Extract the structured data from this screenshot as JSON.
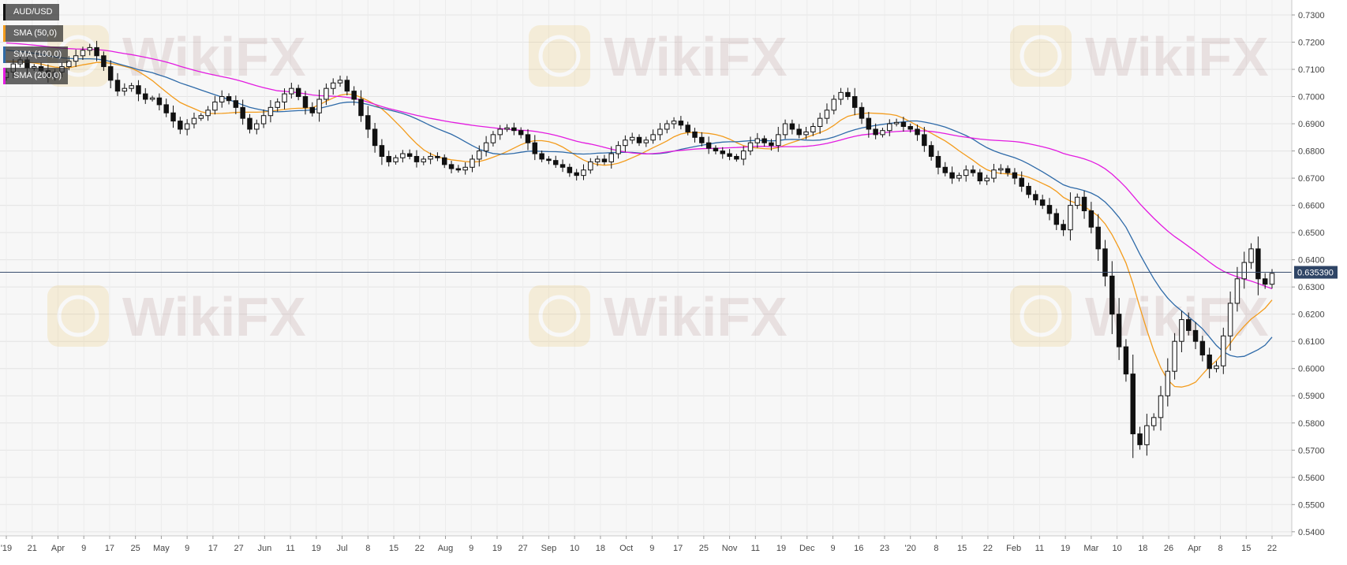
{
  "chart_data": {
    "type": "candlestick",
    "symbol": "AUD/USD",
    "indicators": [
      {
        "name": "SMA (50,0)",
        "color": "#f39c1d"
      },
      {
        "name": "SMA (100,0)",
        "color": "#2e6aa8"
      },
      {
        "name": "SMA (200,0)",
        "color": "#e31be0"
      }
    ],
    "price_axis": {
      "ticks": [
        "0.7300",
        "0.7200",
        "0.7100",
        "0.7000",
        "0.6900",
        "0.6800",
        "0.6700",
        "0.6600",
        "0.6500",
        "0.6400",
        "0.6300",
        "0.6200",
        "0.6100",
        "0.6000",
        "0.5900",
        "0.5800",
        "0.5700",
        "0.5600",
        "0.5500",
        "0.5400"
      ],
      "ylim": [
        0.5385,
        0.7355
      ]
    },
    "time_axis": {
      "ticks": [
        "'19",
        "21",
        "Apr",
        "9",
        "17",
        "25",
        "May",
        "9",
        "17",
        "27",
        "Jun",
        "11",
        "19",
        "Jul",
        "8",
        "15",
        "22",
        "Aug",
        "9",
        "19",
        "27",
        "Sep",
        "10",
        "18",
        "Oct",
        "9",
        "17",
        "25",
        "Nov",
        "11",
        "19",
        "Dec",
        "9",
        "16",
        "23",
        "'20",
        "8",
        "15",
        "22",
        "Feb",
        "11",
        "19",
        "Mar",
        "10",
        "18",
        "26",
        "Apr",
        "8",
        "15",
        "22"
      ]
    },
    "current_price": "0.635390",
    "current_price_value": 0.63539,
    "watermark": "WikiFX",
    "grid": true,
    "legend_position": "top-left",
    "closes": [
      0.709,
      0.712,
      0.7135,
      0.7105,
      0.711,
      0.7095,
      0.707,
      0.709,
      0.711,
      0.713,
      0.715,
      0.717,
      0.718,
      0.715,
      0.711,
      0.706,
      0.702,
      0.703,
      0.704,
      0.701,
      0.699,
      0.6995,
      0.697,
      0.694,
      0.691,
      0.688,
      0.69,
      0.692,
      0.693,
      0.695,
      0.698,
      0.7,
      0.6985,
      0.696,
      0.692,
      0.688,
      0.69,
      0.693,
      0.696,
      0.698,
      0.701,
      0.703,
      0.7,
      0.696,
      0.694,
      0.699,
      0.703,
      0.705,
      0.706,
      0.702,
      0.699,
      0.693,
      0.688,
      0.682,
      0.678,
      0.676,
      0.6775,
      0.679,
      0.678,
      0.676,
      0.677,
      0.678,
      0.6775,
      0.675,
      0.6735,
      0.673,
      0.674,
      0.677,
      0.68,
      0.683,
      0.686,
      0.688,
      0.6885,
      0.6875,
      0.686,
      0.683,
      0.679,
      0.677,
      0.6765,
      0.675,
      0.674,
      0.672,
      0.671,
      0.673,
      0.676,
      0.677,
      0.676,
      0.679,
      0.682,
      0.684,
      0.685,
      0.683,
      0.684,
      0.686,
      0.688,
      0.69,
      0.691,
      0.6895,
      0.687,
      0.685,
      0.683,
      0.681,
      0.68,
      0.679,
      0.678,
      0.677,
      0.68,
      0.683,
      0.6845,
      0.683,
      0.682,
      0.686,
      0.69,
      0.688,
      0.686,
      0.687,
      0.689,
      0.692,
      0.695,
      0.699,
      0.7015,
      0.7,
      0.696,
      0.692,
      0.688,
      0.686,
      0.6875,
      0.69,
      0.6905,
      0.689,
      0.688,
      0.686,
      0.682,
      0.678,
      0.674,
      0.672,
      0.67,
      0.671,
      0.673,
      0.672,
      0.669,
      0.67,
      0.673,
      0.6735,
      0.672,
      0.67,
      0.667,
      0.664,
      0.662,
      0.66,
      0.657,
      0.653,
      0.651,
      0.66,
      0.663,
      0.658,
      0.652,
      0.644,
      0.634,
      0.62,
      0.608,
      0.598,
      0.576,
      0.572,
      0.579,
      0.582,
      0.59,
      0.599,
      0.61,
      0.618,
      0.614,
      0.61,
      0.605,
      0.6,
      0.601,
      0.612,
      0.624,
      0.633,
      0.639,
      0.644,
      0.633,
      0.631,
      0.635
    ]
  }
}
